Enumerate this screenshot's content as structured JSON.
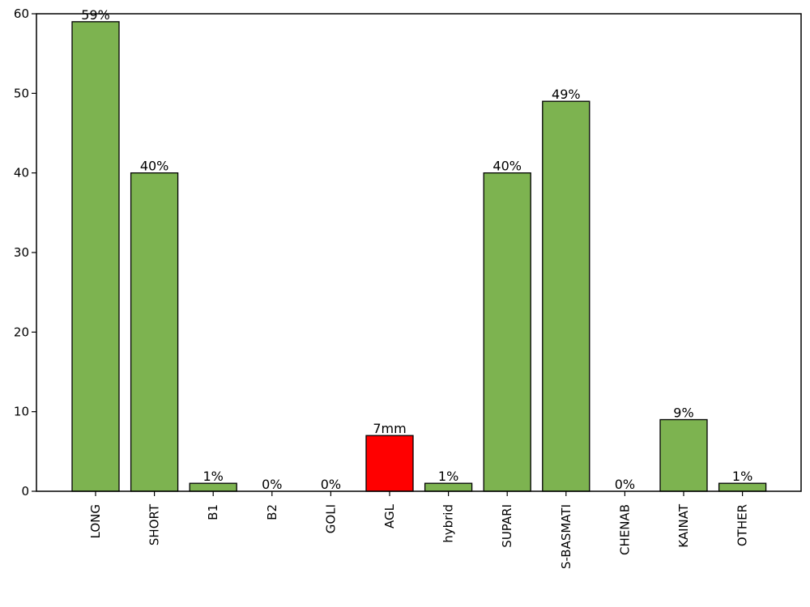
{
  "chart_data": {
    "type": "bar",
    "categories": [
      "LONG",
      "SHORT",
      "B1",
      "B2",
      "GOLI",
      "AGL",
      "hybrid",
      "SUPARI",
      "S-BASMATI",
      "CHENAB",
      "KAINAT",
      "OTHER"
    ],
    "values": [
      59,
      40,
      1,
      0,
      0,
      7,
      1,
      40,
      49,
      0,
      9,
      1
    ],
    "data_labels": [
      "59%",
      "40%",
      "1%",
      "0%",
      "0%",
      "7mm",
      "1%",
      "40%",
      "49%",
      "0%",
      "9%",
      "1%"
    ],
    "bar_colors": [
      "#7db350",
      "#7db350",
      "#7db350",
      "#7db350",
      "#7db350",
      "#ff0000",
      "#7db350",
      "#7db350",
      "#7db350",
      "#7db350",
      "#7db350",
      "#7db350"
    ],
    "y_ticks": [
      0,
      10,
      20,
      30,
      40,
      50,
      60
    ],
    "ylim": [
      0,
      60
    ],
    "title": "",
    "xlabel": "",
    "ylabel": "",
    "grid": false,
    "x_tick_rotation": "vertical"
  }
}
